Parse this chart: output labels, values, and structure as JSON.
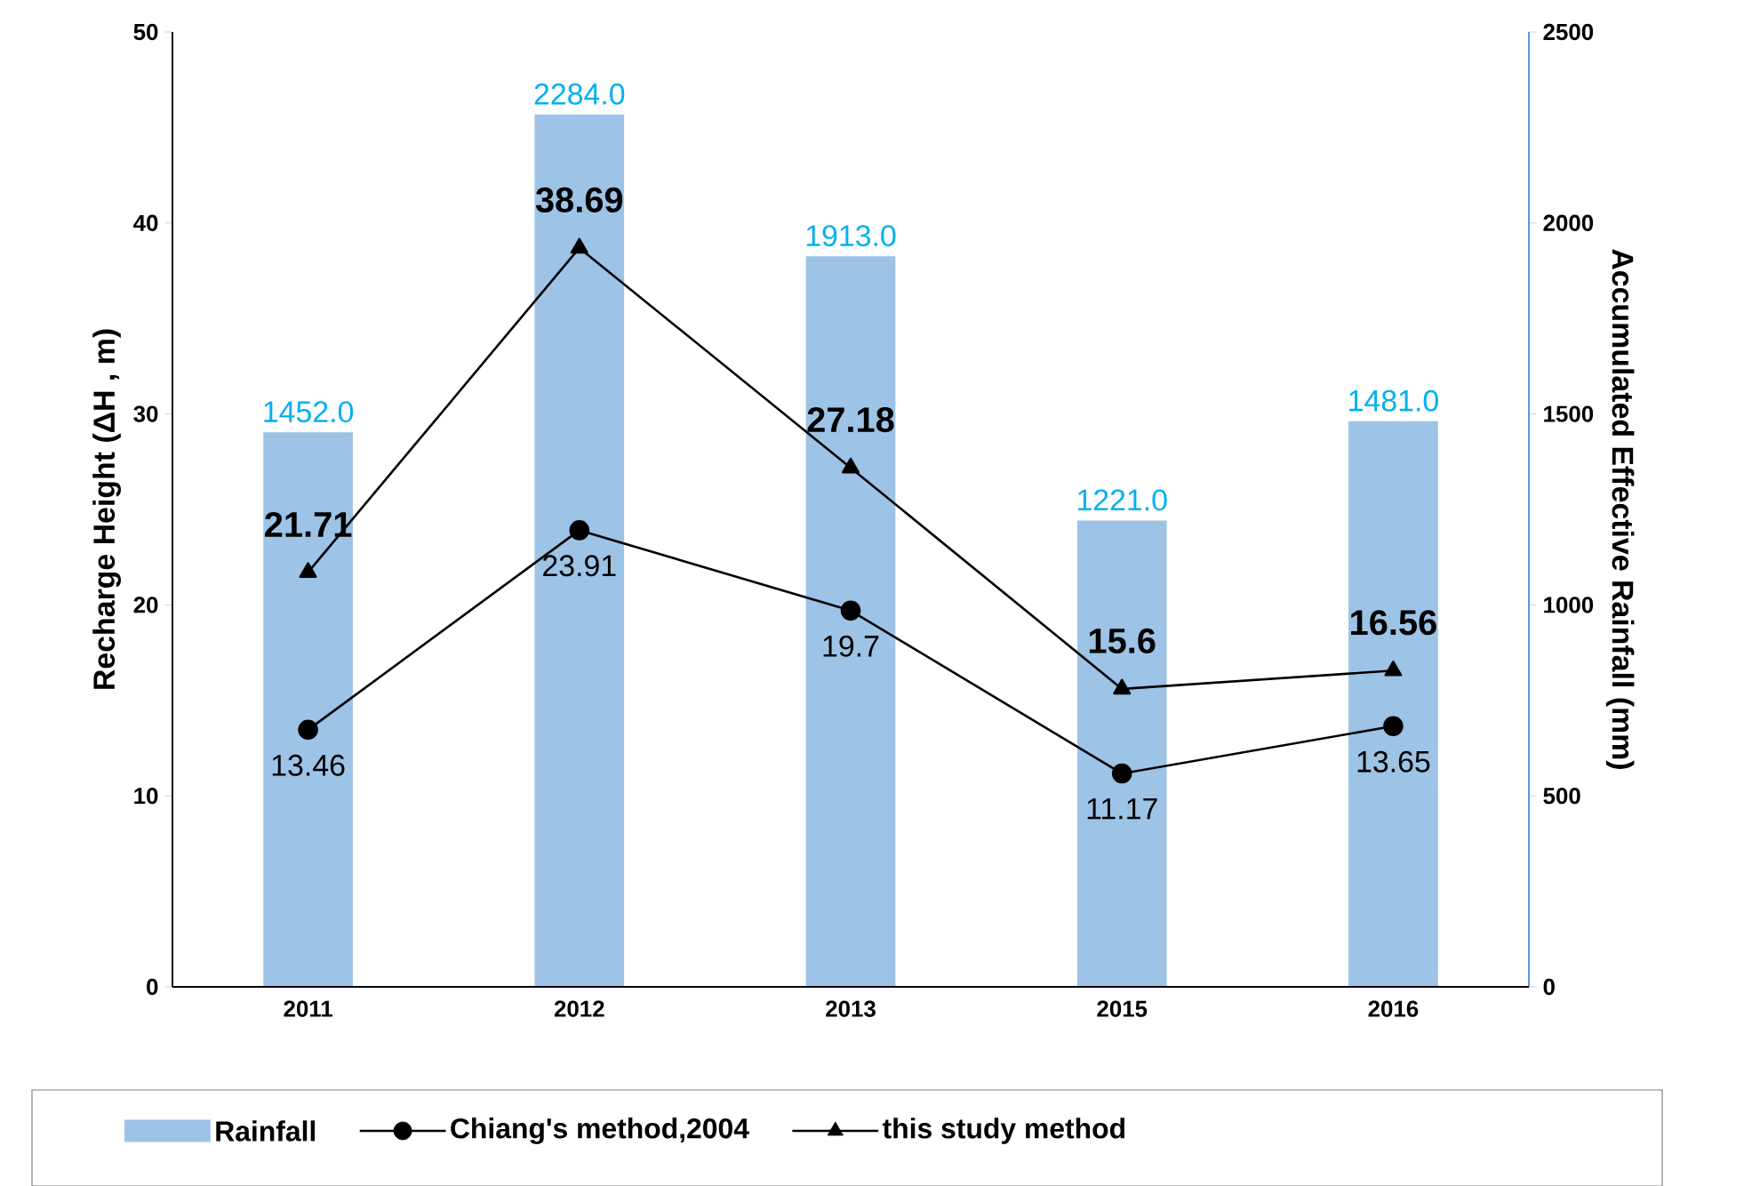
{
  "chart_data": {
    "type": "bar",
    "categories": [
      "2011",
      "2012",
      "2013",
      "2015",
      "2016"
    ],
    "ylabel": "Recharge Height (ΔH , m)",
    "y2label": "Accumulated Effective Rainfall (mm)",
    "ylim": [
      0,
      50
    ],
    "yticks": [
      0,
      10,
      20,
      30,
      40,
      50
    ],
    "y2lim": [
      0,
      2500
    ],
    "y2ticks": [
      0,
      500,
      1000,
      1500,
      2000,
      2500
    ],
    "legend": "bottom",
    "grid": false,
    "series": [
      {
        "name": "Rainfall",
        "axis": "y2",
        "color": "#9dc3e6",
        "values": [
          1452,
          2284,
          1913,
          1221,
          1481
        ],
        "value_labels": [
          "1452.0",
          "2284.0",
          "1913.0",
          "1221.0",
          "1481.0"
        ]
      },
      {
        "name": "Chiang's method,2004",
        "type": "line",
        "axis": "y",
        "color": "#000000",
        "marker": "circle",
        "values": [
          13.46,
          23.91,
          19.7,
          11.17,
          13.65
        ],
        "value_labels": [
          "13.46",
          "23.91",
          "19.7",
          "11.17",
          "13.65"
        ]
      },
      {
        "name": "this study method",
        "type": "line",
        "axis": "y",
        "color": "#000000",
        "marker": "triangle",
        "values": [
          21.71,
          38.69,
          27.18,
          15.6,
          16.56
        ],
        "value_labels": [
          "21.71",
          "38.69",
          "27.18",
          "15.6",
          "16.56"
        ]
      }
    ]
  }
}
